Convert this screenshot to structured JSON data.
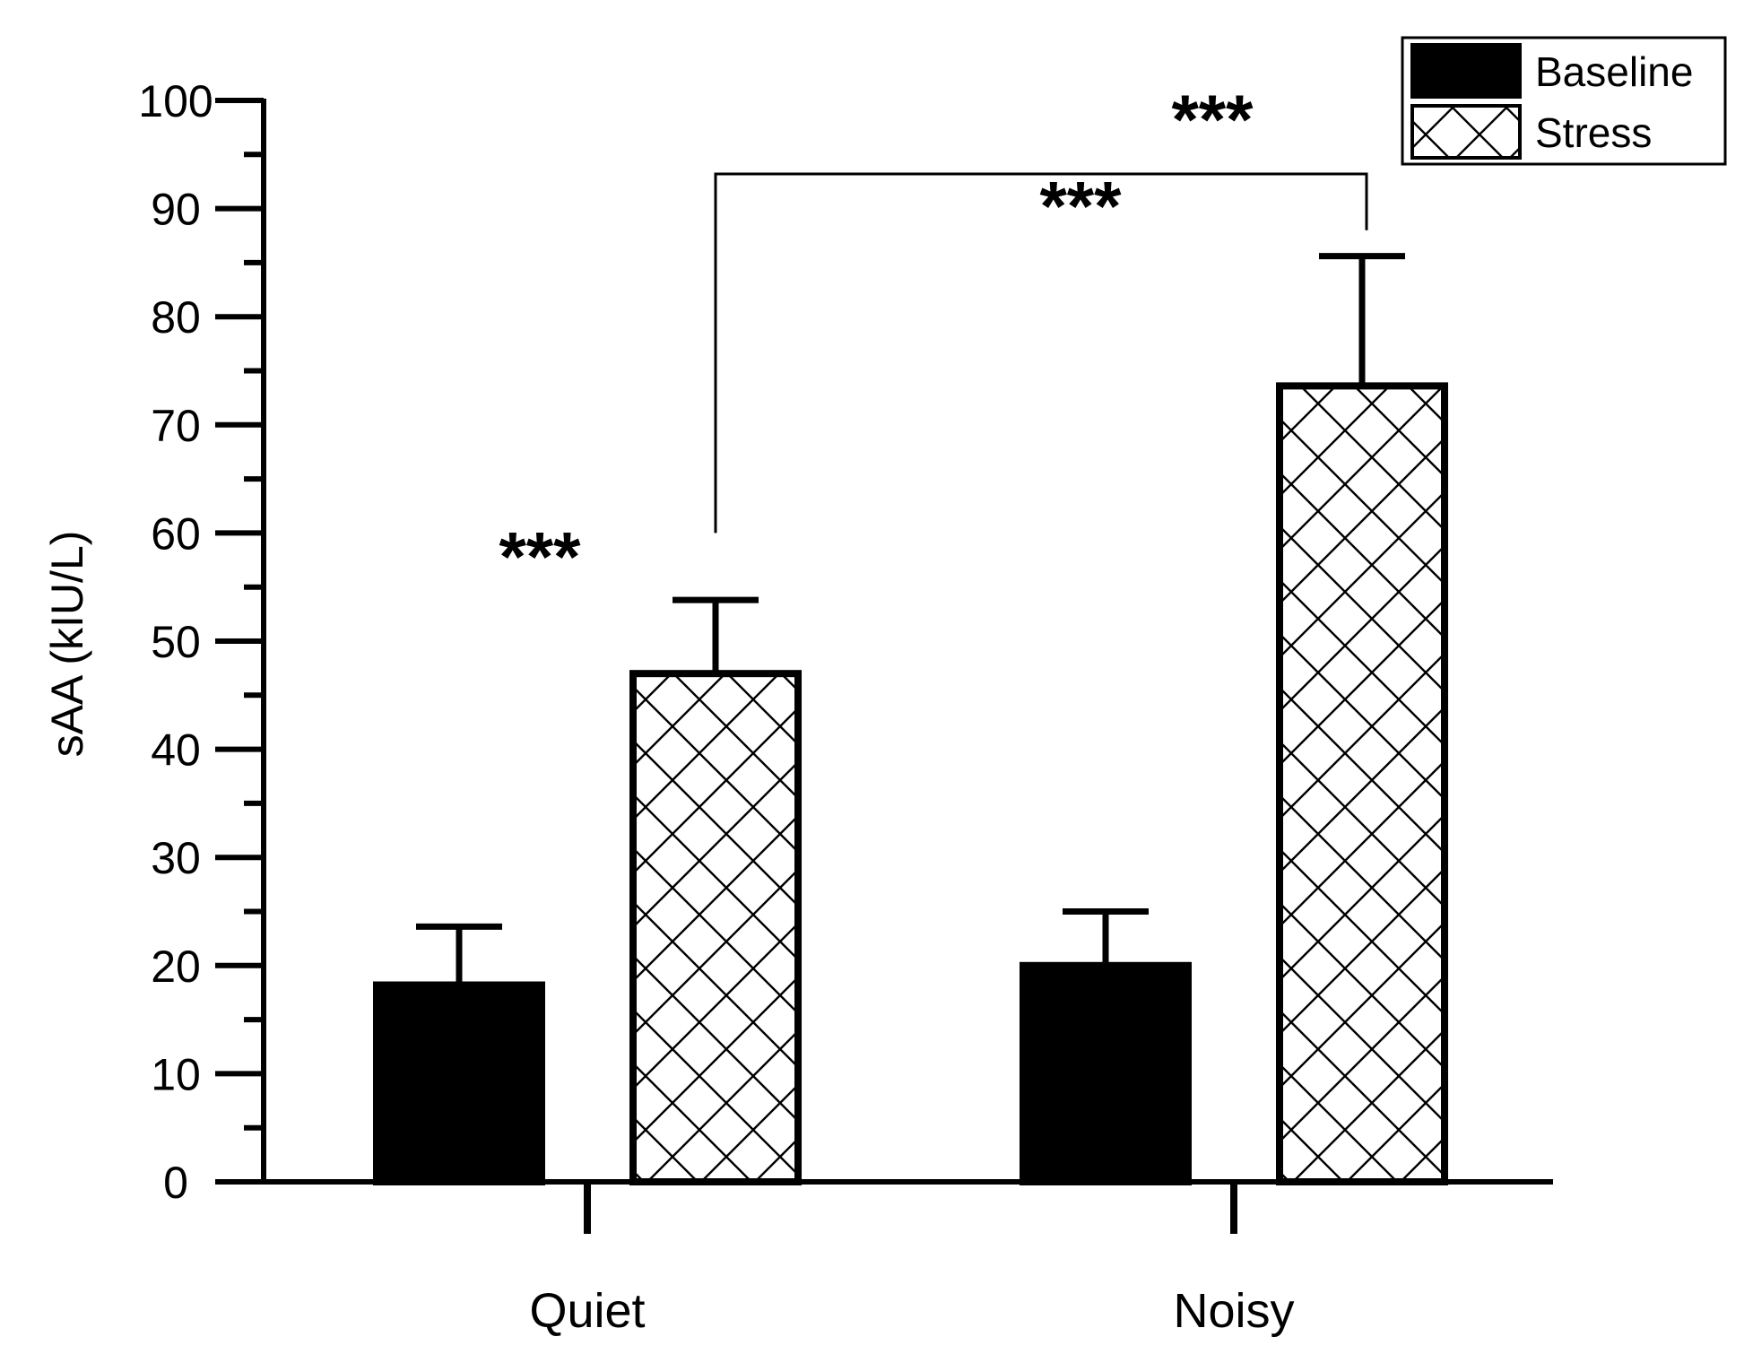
{
  "chart_data": {
    "type": "bar",
    "title": "",
    "xlabel": "",
    "ylabel": "sAA (kIU/L)",
    "ylim": [
      0,
      100
    ],
    "yticks": [
      0,
      10,
      20,
      30,
      40,
      50,
      60,
      70,
      80,
      90,
      100
    ],
    "categories": [
      "Quiet",
      "Noisy"
    ],
    "series": [
      {
        "name": "Baseline",
        "values": [
          18.2,
          20.0
        ],
        "errors": [
          5.4,
          5.0
        ],
        "fill": "solid",
        "color": "#000000"
      },
      {
        "name": "Stress",
        "values": [
          47.0,
          73.6
        ],
        "errors": [
          6.8,
          12.0
        ],
        "fill": "crosshatch",
        "color": "#000000"
      }
    ],
    "legend": {
      "position": "top-right"
    },
    "grid": false,
    "annotations": [
      {
        "text": "***",
        "target": "Quiet baseline vs stress"
      },
      {
        "text": "***",
        "target": "Noisy baseline vs stress"
      },
      {
        "text": "***",
        "target": "Quiet stress vs Noisy stress"
      }
    ]
  }
}
